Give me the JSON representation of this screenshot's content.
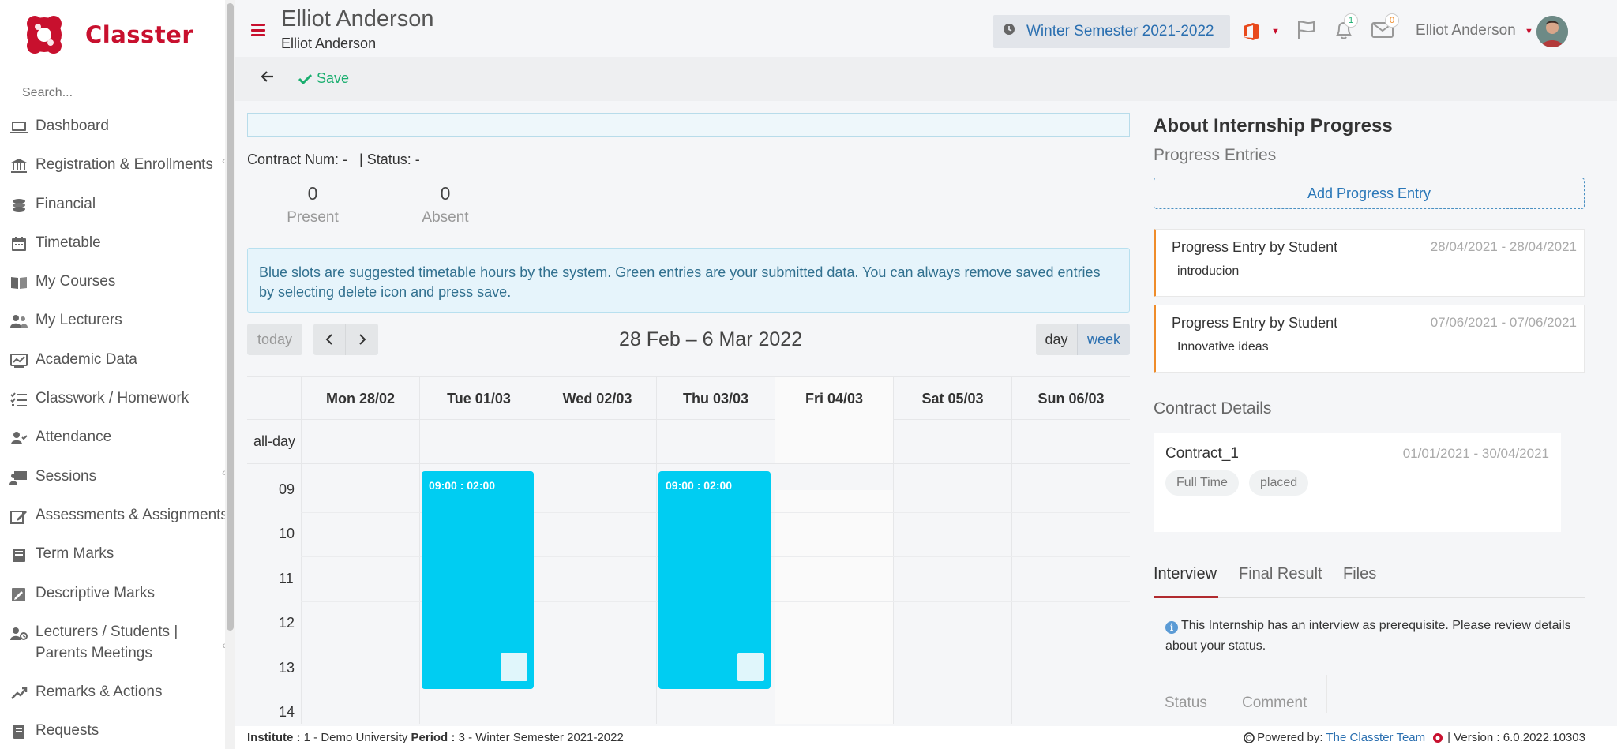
{
  "brand": {
    "name": "Classter"
  },
  "sidebar": {
    "search_placeholder": "Search...",
    "items": [
      {
        "label": "Dashboard",
        "icon": "laptop-icon",
        "chevron": false
      },
      {
        "label": "Registration & Enrollments",
        "icon": "institution-icon",
        "chevron": true
      },
      {
        "label": "Financial",
        "icon": "coins-icon",
        "chevron": false
      },
      {
        "label": "Timetable",
        "icon": "calendar-icon",
        "chevron": false
      },
      {
        "label": "My Courses",
        "icon": "book-icon",
        "chevron": false
      },
      {
        "label": "My Lecturers",
        "icon": "users-icon",
        "chevron": false
      },
      {
        "label": "Academic Data",
        "icon": "chart-board-icon",
        "chevron": false
      },
      {
        "label": "Classwork / Homework",
        "icon": "tasks-icon",
        "chevron": false
      },
      {
        "label": "Attendance",
        "icon": "user-check-icon",
        "chevron": false
      },
      {
        "label": "Sessions",
        "icon": "presentation-icon",
        "chevron": true
      },
      {
        "label": "Assessments & Assignments",
        "icon": "edit-icon",
        "chevron": false
      },
      {
        "label": "Term Marks",
        "icon": "notebook-icon",
        "chevron": false
      },
      {
        "label": "Descriptive Marks",
        "icon": "pen-note-icon",
        "chevron": false
      },
      {
        "label": "Lecturers / Students | Parents Meetings",
        "icon": "meeting-icon",
        "chevron": true
      },
      {
        "label": "Remarks & Actions",
        "icon": "remarks-icon",
        "chevron": false
      },
      {
        "label": "Requests",
        "icon": "request-icon",
        "chevron": false
      }
    ]
  },
  "header": {
    "title": "Elliot Anderson",
    "subtitle": "Elliot Anderson",
    "semester": "Winter Semester 2021-2022",
    "notifications_count": "1",
    "messages_count": "0",
    "user_name": "Elliot Anderson"
  },
  "toolbar": {
    "save_label": "Save"
  },
  "contract": {
    "line": "Contract Num: -   | Status: -",
    "present_value": "0",
    "present_label": "Present",
    "absent_value": "0",
    "absent_label": "Absent"
  },
  "info_message": "Blue slots are suggested timetable hours by the system. Green entries are your submitted data. You can always remove saved entries by selecting delete icon and press save.",
  "calendar": {
    "today_label": "today",
    "range_title": "28 Feb – 6 Mar 2022",
    "view_day": "day",
    "view_week": "week",
    "all_day_label": "all-day",
    "days": [
      "Mon 28/02",
      "Tue 01/03",
      "Wed 02/03",
      "Thu 03/03",
      "Fri 04/03",
      "Sat 05/03",
      "Sun 06/03"
    ],
    "hours": [
      "09",
      "10",
      "11",
      "12",
      "13",
      "14"
    ],
    "events": [
      {
        "day": "Tue 01/03",
        "label": "09:00 : 02:00"
      },
      {
        "day": "Thu 03/03",
        "label": "09:00 : 02:00"
      }
    ],
    "event_color": "#00cdf2"
  },
  "right_panel": {
    "title": "About Internship Progress",
    "progress_heading": "Progress Entries",
    "add_entry_label": "Add Progress Entry",
    "entries": [
      {
        "title": "Progress Entry by Student",
        "dates": "28/04/2021 - 28/04/2021",
        "body": "introducion"
      },
      {
        "title": "Progress Entry by Student",
        "dates": "07/06/2021 - 07/06/2021",
        "body": "Innovative ideas"
      }
    ],
    "contract_heading": "Contract Details",
    "contract_card": {
      "name": "Contract_1",
      "dates": "01/01/2021 - 30/04/2021",
      "tags": [
        "Full Time",
        "placed"
      ]
    },
    "tabs": [
      "Interview",
      "Final Result",
      "Files"
    ],
    "interview_info": "This Internship has an interview as prerequisite. Please review details about your status.",
    "table_headers": [
      "Status",
      "Comment"
    ]
  },
  "footer": {
    "institute_label": "Institute :",
    "institute_value": "1 - Demo University",
    "period_label": "Period :",
    "period_value": "3 - Winter Semester 2021-2022",
    "powered_label": "Powered by:",
    "powered_link": "The Classter Team",
    "version_text": "| Version : 6.0.2022.10303"
  },
  "colors": {
    "brand_red": "#c8102e",
    "accent_blue": "#2a6fb0",
    "save_green": "#1aae6f",
    "entry_orange": "#ef8c2a"
  }
}
